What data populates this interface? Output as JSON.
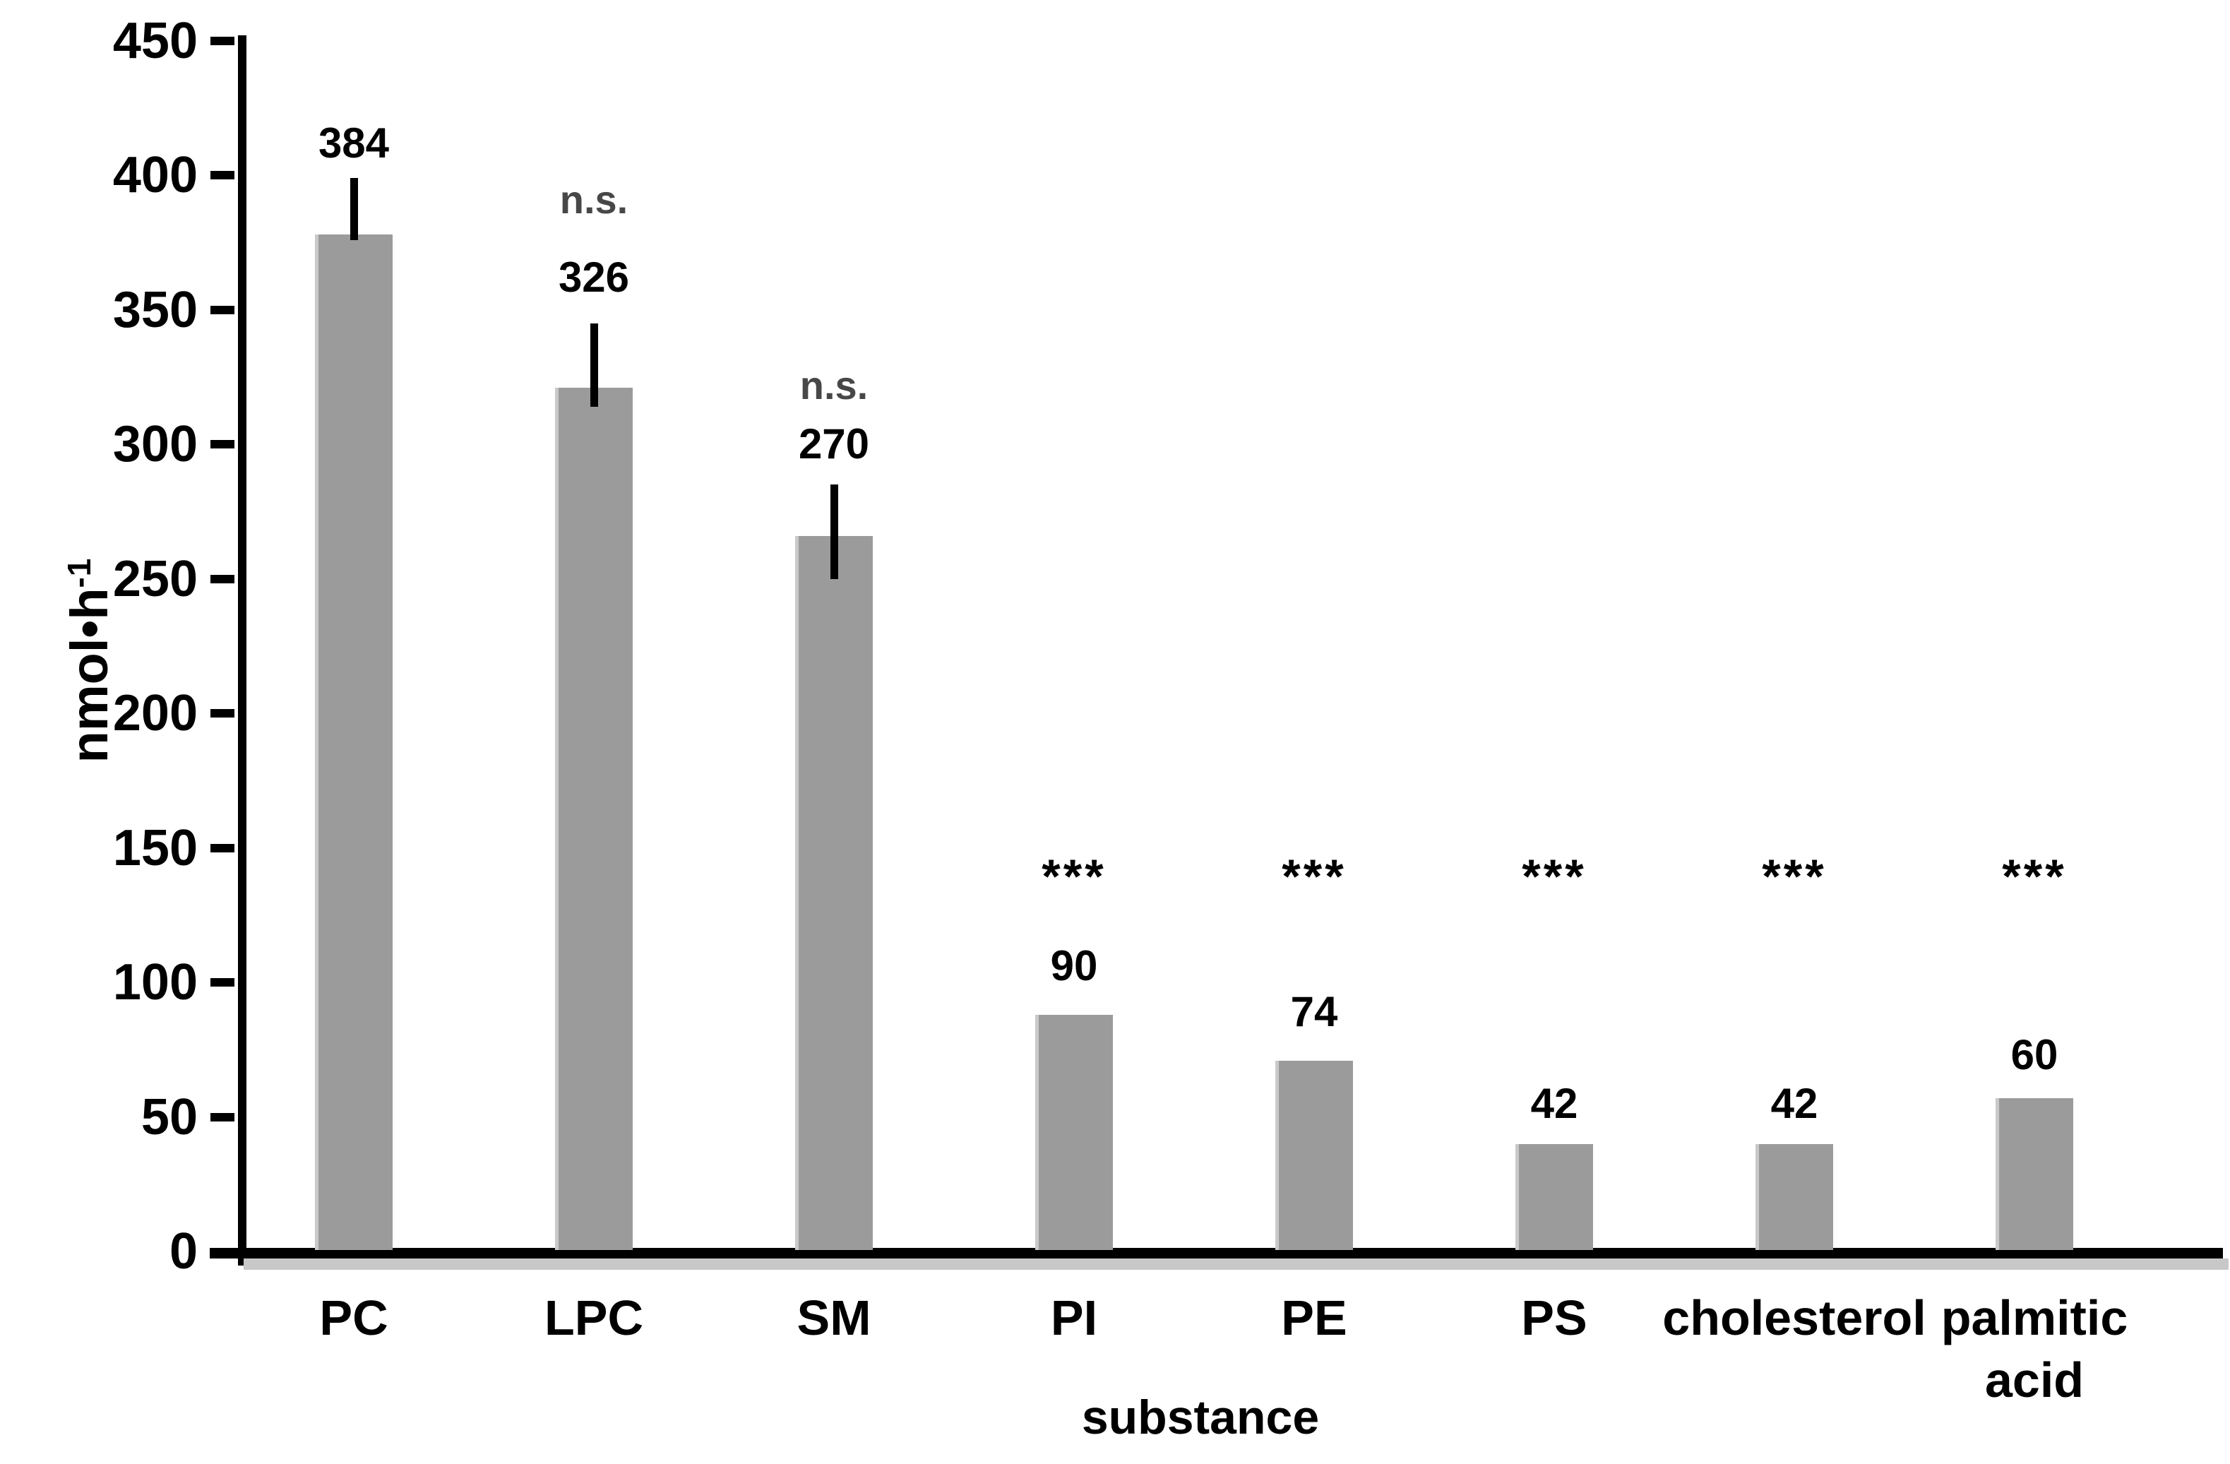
{
  "figure": {
    "background": "#ffffff",
    "ylabel_base": "nmol•h",
    "ylabel_sup": "-1",
    "xlabel": "substance"
  },
  "colors": {
    "bar_fill": "#9b9b9b",
    "bar_edge_highlight": "#c9c9c9",
    "axis": "#000000",
    "axis_shadow": "#c8c8c8",
    "ns_text": "#474747",
    "label_text": "#000000"
  },
  "chart_data": {
    "type": "bar",
    "title": "",
    "xlabel": "substance",
    "ylabel": "nmol•h⁻¹",
    "ylim": [
      0,
      450
    ],
    "ytick_step": 50,
    "yticks": [
      0,
      50,
      100,
      150,
      200,
      250,
      300,
      350,
      400,
      450
    ],
    "grid": false,
    "legend": null,
    "categories": [
      "PC",
      "LPC",
      "SM",
      "PI",
      "PE",
      "PS",
      "cholesterol",
      "palmitic acid"
    ],
    "values": [
      384,
      326,
      270,
      90,
      74,
      42,
      42,
      60
    ],
    "bars": [
      {
        "category_lines": "PC",
        "value": "384",
        "bar_top": 378,
        "error_low": 376,
        "error_high": 399,
        "annotation": null,
        "label_y": 412,
        "annotation_y": null
      },
      {
        "category_lines": "LPC",
        "value": "326",
        "bar_top": 321,
        "error_low": 314,
        "error_high": 345,
        "annotation": "n.s.",
        "label_y": 362,
        "annotation_y": 391
      },
      {
        "category_lines": "SM",
        "value": "270",
        "bar_top": 266,
        "error_low": 250,
        "error_high": 285,
        "annotation": "n.s.",
        "label_y": 300,
        "annotation_y": 322
      },
      {
        "category_lines": "PI",
        "value": "90",
        "bar_top": 88,
        "error_low": null,
        "error_high": null,
        "annotation": "***",
        "label_y": 106,
        "annotation_y": 142
      },
      {
        "category_lines": "PE",
        "value": "74",
        "bar_top": 71,
        "error_low": null,
        "error_high": null,
        "annotation": "***",
        "label_y": 89,
        "annotation_y": 142
      },
      {
        "category_lines": "PS",
        "value": "42",
        "bar_top": 40,
        "error_low": null,
        "error_high": null,
        "annotation": "***",
        "label_y": 55,
        "annotation_y": 142
      },
      {
        "category_lines": "cholesterol",
        "value": "42",
        "bar_top": 40,
        "error_low": null,
        "error_high": null,
        "annotation": "***",
        "label_y": 55,
        "annotation_y": 142
      },
      {
        "category_lines": "palmitic\nacid",
        "value": "60",
        "bar_top": 57,
        "error_low": null,
        "error_high": null,
        "annotation": "***",
        "label_y": 73,
        "annotation_y": 142
      }
    ]
  }
}
